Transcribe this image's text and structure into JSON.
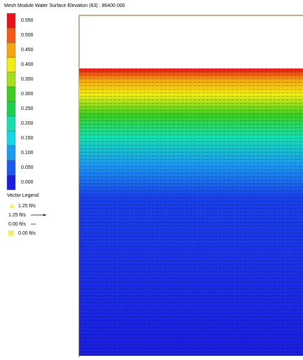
{
  "title": "Mesh Module Water Surface Elevation (63) : 86400.000",
  "color_legend": [
    {
      "color": "#e8141a",
      "label": "0.550"
    },
    {
      "color": "#f25a16",
      "label": "0.500"
    },
    {
      "color": "#f7a60f",
      "label": "0.450"
    },
    {
      "color": "#f2ee10",
      "label": "0.400"
    },
    {
      "color": "#a6e018",
      "label": "0.350"
    },
    {
      "color": "#3ccf1f",
      "label": "0.300"
    },
    {
      "color": "#18d44a",
      "label": "0.250"
    },
    {
      "color": "#14e0b0",
      "label": "0.200"
    },
    {
      "color": "#12d8e8",
      "label": "0.150"
    },
    {
      "color": "#1a9cf0",
      "label": "0.100"
    },
    {
      "color": "#1a5cf2",
      "label": "0.050"
    },
    {
      "color": "#1a1ee0",
      "label": "0.000"
    }
  ],
  "vector_legend": {
    "title": "Vector Legend",
    "max_marker": "1.25 ft/s",
    "max_arrow": "1.25 ft/s",
    "min_arrow": "0.00 ft/s",
    "min_marker": "0.00 ft/s"
  }
}
